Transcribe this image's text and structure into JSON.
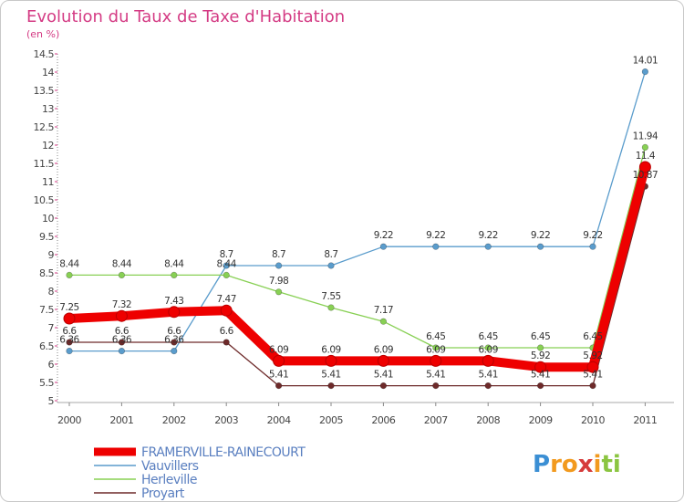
{
  "chart_data": {
    "type": "line",
    "title": "Evolution du Taux de Taxe d'Habitation",
    "subtitle": "(en %)",
    "x": [
      "2000",
      "2001",
      "2002",
      "2003",
      "2004",
      "2005",
      "2006",
      "2007",
      "2008",
      "2009",
      "2010",
      "2011"
    ],
    "ylim": [
      5,
      14.5
    ],
    "yticks": [
      "5",
      "5.5",
      "6",
      "6.5",
      "7",
      "7.5",
      "8",
      "8.5",
      "9",
      "9.5",
      "10",
      "10.5",
      "11",
      "11.5",
      "12",
      "12.5",
      "13",
      "13.5",
      "14",
      "14.5"
    ],
    "grid": false,
    "legend_position": "bottom-left",
    "series": [
      {
        "name": "Vauvillers",
        "color": "#5a9ccc",
        "values": [
          6.36,
          6.36,
          6.36,
          8.7,
          8.7,
          8.7,
          9.22,
          9.22,
          9.22,
          9.22,
          9.22,
          14.01
        ],
        "labels": [
          "6.36",
          "6.36",
          "6.36",
          "8.7",
          "8.7",
          "8.7",
          "9.22",
          "9.22",
          "9.22",
          "9.22",
          "9.22",
          "14.01"
        ]
      },
      {
        "name": "Herleville",
        "color": "#88d054",
        "values": [
          8.44,
          8.44,
          8.44,
          8.44,
          7.98,
          7.55,
          7.17,
          6.45,
          6.45,
          6.45,
          6.45,
          11.94
        ],
        "labels": [
          "8.44",
          "8.44",
          "8.44",
          "8.44",
          "7.98",
          "7.55",
          "7.17",
          "6.45",
          "6.45",
          "6.45",
          "6.45",
          "11.94"
        ]
      },
      {
        "name": "Proyart",
        "color": "#6e2a2a",
        "values": [
          6.6,
          6.6,
          6.6,
          6.6,
          5.41,
          5.41,
          5.41,
          5.41,
          5.41,
          5.41,
          5.41,
          10.87
        ],
        "labels": [
          "6.6",
          "6.6",
          "6.6",
          "6.6",
          "5.41",
          "5.41",
          "5.41",
          "5.41",
          "5.41",
          "5.41",
          "5.41",
          "10.87"
        ]
      },
      {
        "name": "FRAMERVILLE-RAINECOURT",
        "color": "#ee0000",
        "values": [
          7.25,
          7.32,
          7.43,
          7.47,
          6.09,
          6.09,
          6.09,
          6.09,
          6.09,
          5.92,
          5.92,
          11.4
        ],
        "labels": [
          "7.25",
          "7.32",
          "7.43",
          "7.47",
          "6.09",
          "6.09",
          "6.09",
          "6.09",
          "6.09",
          "5.92",
          "5.92",
          "11.4"
        ]
      }
    ],
    "legend": [
      "FRAMERVILLE-RAINECOURT",
      "Vauvillers",
      "Herleville",
      "Proyart"
    ]
  },
  "logo": {
    "letters": [
      "P",
      "r",
      "o",
      "x",
      "i",
      "t",
      "i"
    ],
    "colors": [
      "#3b8fd4",
      "#f29a1e",
      "#f29a1e",
      "#d63b3b",
      "#f29a1e",
      "#8bc541",
      "#8bc541"
    ]
  }
}
